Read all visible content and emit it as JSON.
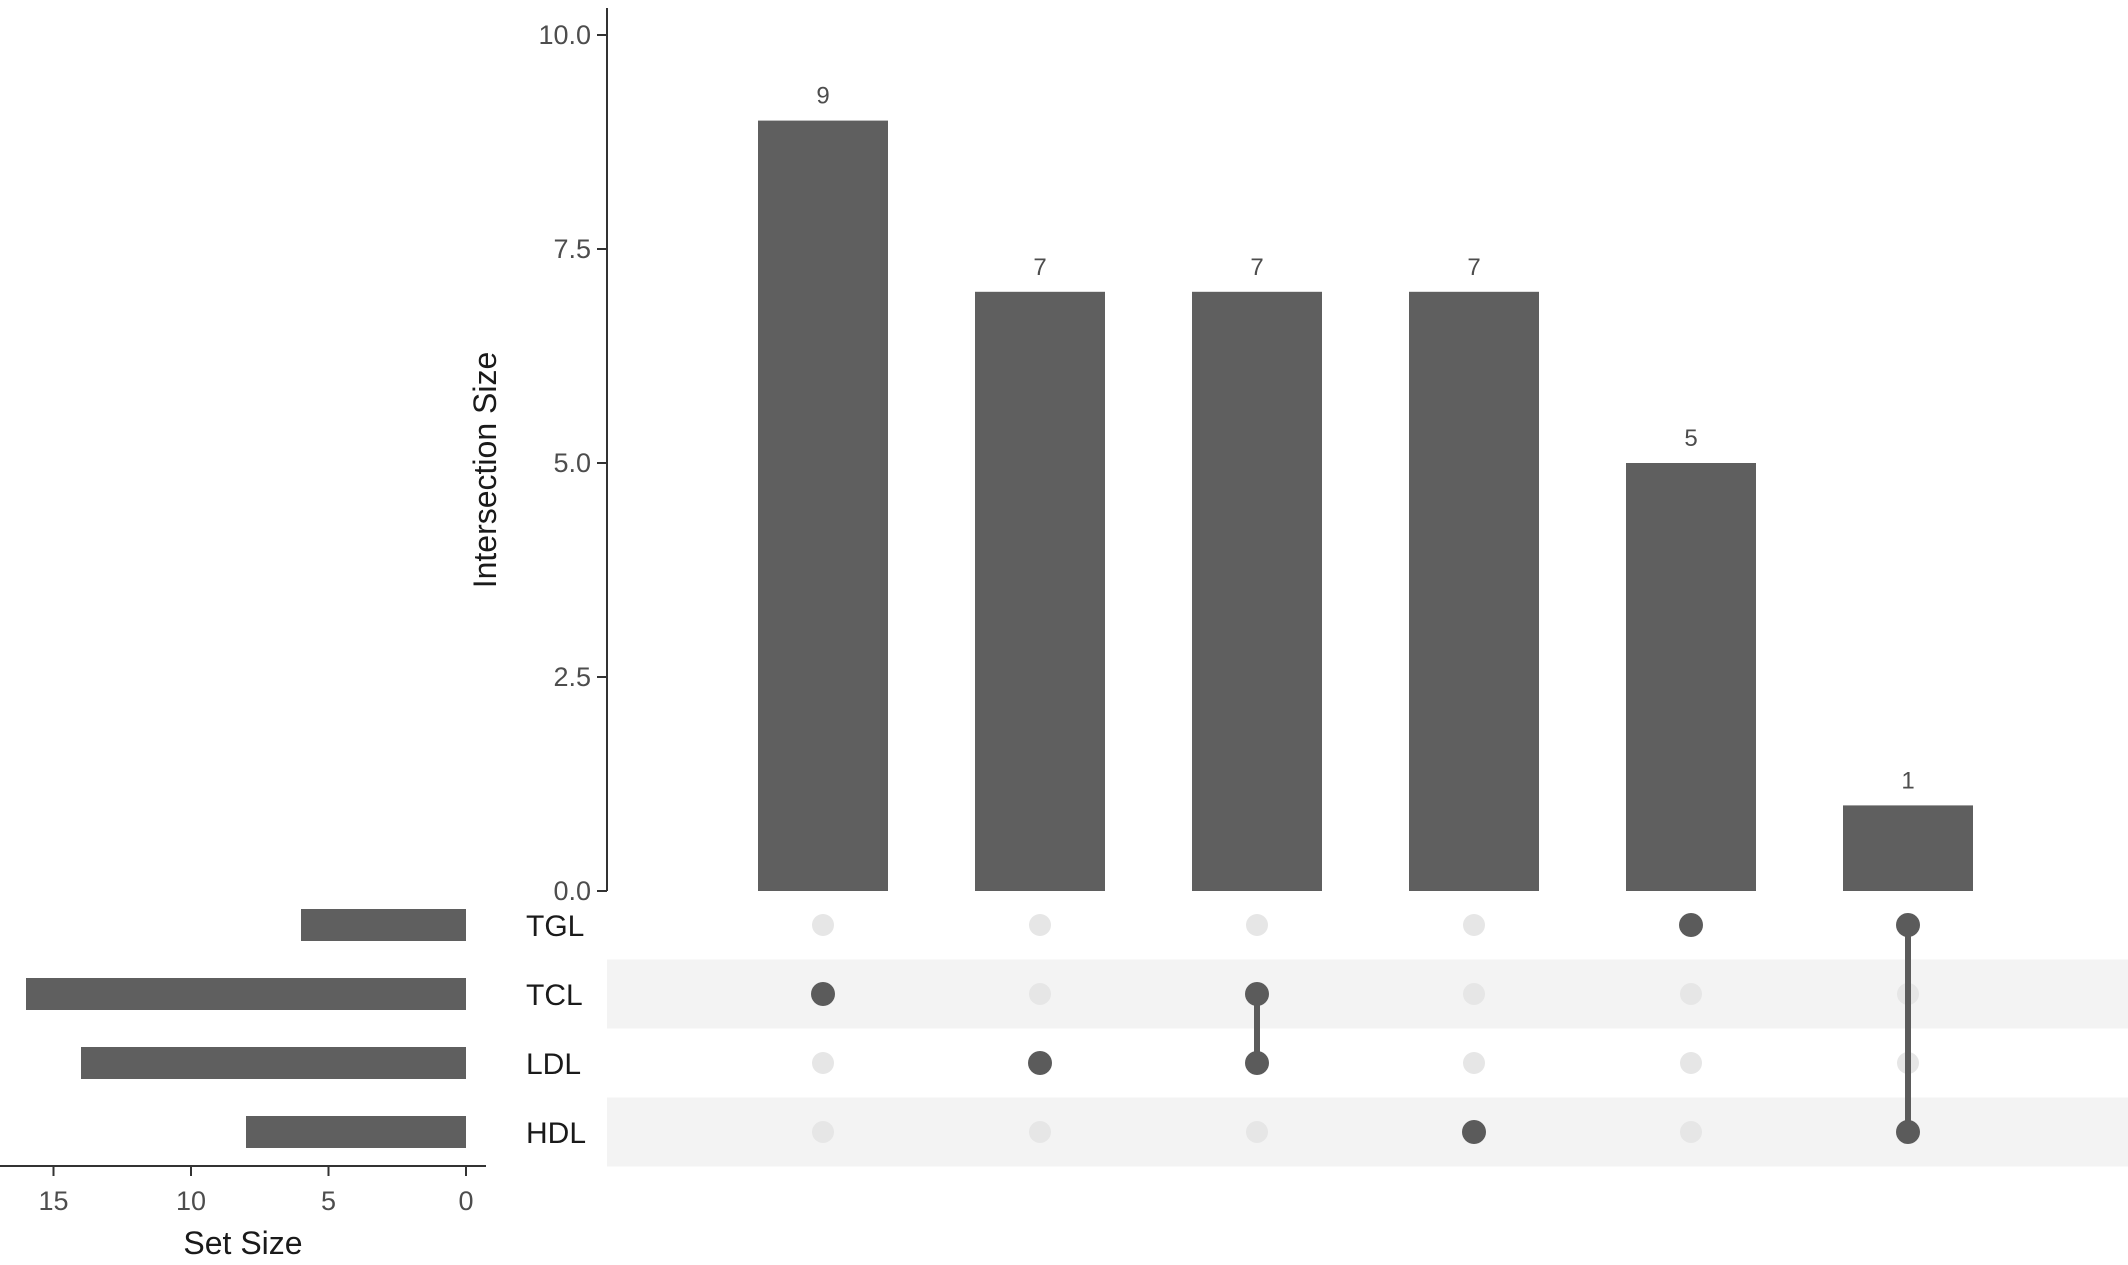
{
  "chart_data": {
    "type": "upset",
    "sets": [
      "TGL",
      "TCL",
      "LDL",
      "HDL"
    ],
    "set_sizes": [
      6,
      16,
      14,
      8
    ],
    "intersections": [
      {
        "members": [
          "TCL"
        ],
        "size": 9
      },
      {
        "members": [
          "LDL"
        ],
        "size": 7
      },
      {
        "members": [
          "TCL",
          "LDL"
        ],
        "size": 7
      },
      {
        "members": [
          "HDL"
        ],
        "size": 7
      },
      {
        "members": [
          "TGL"
        ],
        "size": 5
      },
      {
        "members": [
          "TGL",
          "HDL"
        ],
        "size": 1
      }
    ],
    "intersection_axis": {
      "label": "Intersection Size",
      "ticks": [
        "0.0",
        "2.5",
        "5.0",
        "7.5",
        "10.0"
      ],
      "range": [
        0,
        10
      ]
    },
    "set_axis": {
      "label": "Set Size",
      "ticks": [
        "15",
        "10",
        "5",
        "0"
      ],
      "range": [
        0,
        17.5
      ]
    },
    "colors": {
      "bar": "#5f5f5f",
      "dot_active": "#5b5b5b",
      "dot_inactive": "#e6e6e6",
      "stripe": "#f3f3f3",
      "axis": "#333333"
    }
  }
}
